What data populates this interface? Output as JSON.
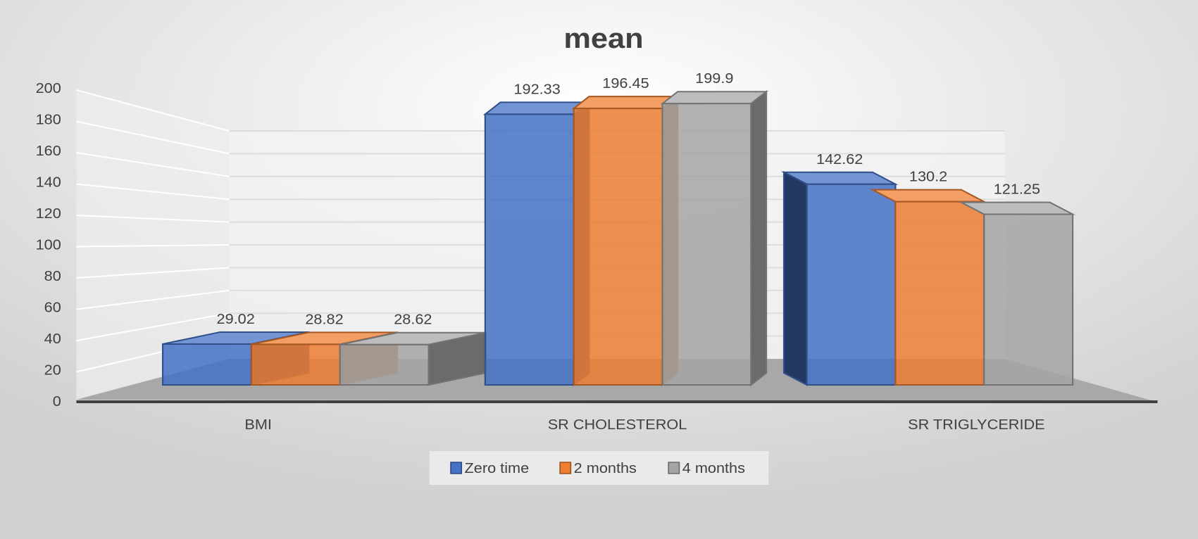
{
  "chart_data": {
    "type": "bar",
    "title": "mean",
    "xlabel": "",
    "ylabel": "",
    "ylim": [
      0,
      200
    ],
    "yticks": [
      0,
      20,
      40,
      60,
      80,
      100,
      120,
      140,
      160,
      180,
      200
    ],
    "categories": [
      "BMI",
      "SR CHOLESTEROL",
      "SR TRIGLYCERIDE"
    ],
    "series": [
      {
        "name": "Zero time",
        "color": "#4472c4",
        "values": [
          29.02,
          192.33,
          142.62
        ],
        "labels": [
          "29.02",
          "192.33",
          "142.62"
        ]
      },
      {
        "name": "2 months",
        "color": "#ed7d31",
        "values": [
          28.82,
          196.45,
          130.2
        ],
        "labels": [
          "28.82",
          "196.45",
          "130.2"
        ]
      },
      {
        "name": "4 months",
        "color": "#a5a5a5",
        "values": [
          28.62,
          199.9,
          121.25
        ],
        "labels": [
          "28.62",
          "199.9",
          "121.25"
        ]
      }
    ],
    "legend": "bottom",
    "grid": true
  }
}
